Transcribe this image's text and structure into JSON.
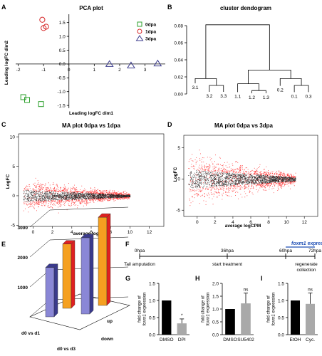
{
  "panels": {
    "A": "A",
    "B": "B",
    "C": "C",
    "D": "D",
    "E": "E",
    "F": "F",
    "G": "G",
    "H": "H",
    "I": "I"
  },
  "colors": {
    "green": "#2ca02c",
    "red": "#d62728",
    "navy": "#3a3a8c",
    "purple": "#8a87d6",
    "orange": "#f5a020",
    "gray": "#a9a9a9",
    "blue": "#1f4fb5"
  },
  "timeline": {
    "times": [
      {
        "label": "0hpa",
        "t": 0
      },
      {
        "label": "36hpa",
        "t": 36
      },
      {
        "label": "60hpa",
        "t": 60
      },
      {
        "label": "72hpa",
        "t": 72
      }
    ],
    "events": [
      "Tail amputation",
      "start treatment",
      "regenerate collection"
    ],
    "expression_prefix": "foxm1",
    "expression_suffix": " expression",
    "expression_start": 60,
    "expression_end": 72
  },
  "chart_data": [
    {
      "id": "A",
      "type": "scatter",
      "title": "PCA plot",
      "xlabel": "Leading logFC dim1",
      "ylabel": "Leading logFC dim2",
      "xlim": [
        -2.1,
        3.8
      ],
      "ylim": [
        -1.6,
        1.8
      ],
      "xticks": [
        -2,
        -1,
        0,
        1,
        2,
        3
      ],
      "yticks": [
        -1.5,
        -1.0,
        -0.5,
        0.0,
        0.5,
        1.0,
        1.5
      ],
      "ytick_labels": [
        "-1.5",
        "-1.0",
        "-0.5",
        "0.0",
        "0.5",
        "1.0",
        "1.5"
      ],
      "legend_position": "top-right",
      "series": [
        {
          "name": "0dpa",
          "marker": "square",
          "color": "#2ca02c",
          "x": [
            -1.8,
            -1.65,
            -1.1
          ],
          "y": [
            -1.2,
            -1.3,
            -1.45
          ]
        },
        {
          "name": "1dpa",
          "marker": "circle",
          "color": "#d62728",
          "x": [
            -1.05,
            -1.0,
            -0.9
          ],
          "y": [
            1.6,
            1.3,
            1.35
          ]
        },
        {
          "name": "3dpa",
          "marker": "triangle",
          "color": "#3a3a8c",
          "x": [
            1.6,
            2.45,
            3.5
          ],
          "y": [
            0.0,
            -0.05,
            0.02
          ]
        }
      ]
    },
    {
      "id": "B",
      "type": "dendrogram",
      "title": "cluster dendogram",
      "ylim": [
        0,
        0.09
      ],
      "yticks": [
        0.0,
        0.02,
        0.04,
        0.06,
        0.08
      ],
      "ytick_labels": [
        "0.00",
        "0.02",
        "0.04",
        "0.06",
        "0.08"
      ],
      "leaves": [
        "3.1",
        "3.2",
        "3.3",
        "1.1",
        "1.2",
        "1.3",
        "0.2",
        "0.1",
        "0.3"
      ],
      "merges": [
        {
          "a": 1,
          "b": 2,
          "h": 0.01
        },
        {
          "a": 0,
          "b": 9,
          "h": 0.018
        },
        {
          "a": 4,
          "b": 5,
          "h": 0.004
        },
        {
          "a": 3,
          "b": 11,
          "h": 0.012
        },
        {
          "a": 7,
          "b": 8,
          "h": 0.01
        },
        {
          "a": 6,
          "b": 13,
          "h": 0.018
        },
        {
          "a": 12,
          "b": 14,
          "h": 0.028
        },
        {
          "a": 10,
          "b": 15,
          "h": 0.081
        }
      ]
    },
    {
      "id": "C",
      "type": "scatter",
      "title": "MA plot 0dpa vs 1dpa",
      "xlabel": "average logCPM",
      "ylabel": "LogFC",
      "xlim": [
        -1.5,
        13.5
      ],
      "ylim": [
        -5.2,
        10.5
      ],
      "xticks": [
        0,
        2,
        4,
        6,
        8,
        10,
        12
      ],
      "yticks": [
        -5,
        0,
        5,
        10
      ],
      "point_colors": {
        "not_significant": "#000000",
        "significant": "#ff0000"
      },
      "shape": {
        "x_start": -1,
        "x_end": 10,
        "center_logfc": 0,
        "spread_low_cpm": 2.0,
        "spread_high_cpm": 0.35
      }
    },
    {
      "id": "D",
      "type": "scatter",
      "title": "MA plot 0dpa vs 3dpa",
      "xlabel": "average logCPM",
      "ylabel": "LogFC",
      "xlim": [
        -1.5,
        13.5
      ],
      "ylim": [
        -6,
        7
      ],
      "xticks": [
        0,
        2,
        4,
        6,
        8,
        10,
        12
      ],
      "yticks": [
        -5,
        0,
        5
      ],
      "point_colors": {
        "not_significant": "#000000",
        "significant": "#ff0000"
      },
      "shape": {
        "x_start": -1,
        "x_end": 11,
        "center_logfc": 0,
        "spread_low_cpm": 3.0,
        "spread_high_cpm": 0.6
      }
    },
    {
      "id": "E",
      "type": "bar",
      "yticks": [
        1000,
        2000,
        3000
      ],
      "groups": [
        "d0 vs d1",
        "d0 vs d3"
      ],
      "depth_labels": [
        "up",
        "down"
      ],
      "bars": [
        {
          "group": "d0 vs d1",
          "depth": "down",
          "value": 1650,
          "front": "#8a87d6",
          "top": "#3a3a8c"
        },
        {
          "group": "d0 vs d1",
          "depth": "up",
          "value": 2150,
          "front": "#f5a020",
          "top": "#e02020"
        },
        {
          "group": "d0 vs d3",
          "depth": "down",
          "value": 2550,
          "front": "#8a87d6",
          "top": "#3a3a8c"
        },
        {
          "group": "d0 vs d3",
          "depth": "up",
          "value": 2950,
          "front": "#f5a020",
          "top": "#e02020"
        }
      ]
    },
    {
      "id": "G",
      "type": "bar",
      "ylabel_prefix": "fold change of",
      "ylabel_gene": "foxm1",
      "ylabel_suffix": " expression",
      "ylim": [
        0,
        1.5
      ],
      "yticks": [
        0.0,
        0.5,
        1.0,
        1.5
      ],
      "ytick_labels": [
        "0.0",
        "0.5",
        "1.0",
        "1.5"
      ],
      "categories": [
        "DMSO",
        "DPI"
      ],
      "values": [
        1.0,
        0.33
      ],
      "errors": [
        0,
        0.13
      ],
      "bar_colors": [
        "#000000",
        "#a9a9a9"
      ],
      "significance": [
        "",
        "*"
      ]
    },
    {
      "id": "H",
      "type": "bar",
      "ylabel_prefix": "fold change of",
      "ylabel_gene": "foxm1",
      "ylabel_suffix": " expression",
      "ylim": [
        0,
        2.0
      ],
      "yticks": [
        0.0,
        0.5,
        1.0,
        1.5,
        2.0
      ],
      "ytick_labels": [
        "0.0",
        "0.5",
        "1.0",
        "1.5",
        "2.0"
      ],
      "categories": [
        "DMSO",
        "SU5402"
      ],
      "values": [
        1.0,
        1.22
      ],
      "errors": [
        0,
        0.4
      ],
      "bar_colors": [
        "#000000",
        "#a9a9a9"
      ],
      "significance": [
        "",
        "ns"
      ]
    },
    {
      "id": "I",
      "type": "bar",
      "ylabel_prefix": "fold change of",
      "ylabel_gene": "foxm1",
      "ylabel_suffix": " expression",
      "ylim": [
        0,
        1.5
      ],
      "yticks": [
        0.0,
        0.5,
        1.0,
        1.5
      ],
      "ytick_labels": [
        "0.0",
        "0.5",
        "1.0",
        "1.5"
      ],
      "categories": [
        "EtOH",
        "Cyc."
      ],
      "values": [
        1.0,
        0.9
      ],
      "errors": [
        0,
        0.32
      ],
      "bar_colors": [
        "#000000",
        "#a9a9a9"
      ],
      "significance": [
        "",
        "ns"
      ]
    }
  ]
}
